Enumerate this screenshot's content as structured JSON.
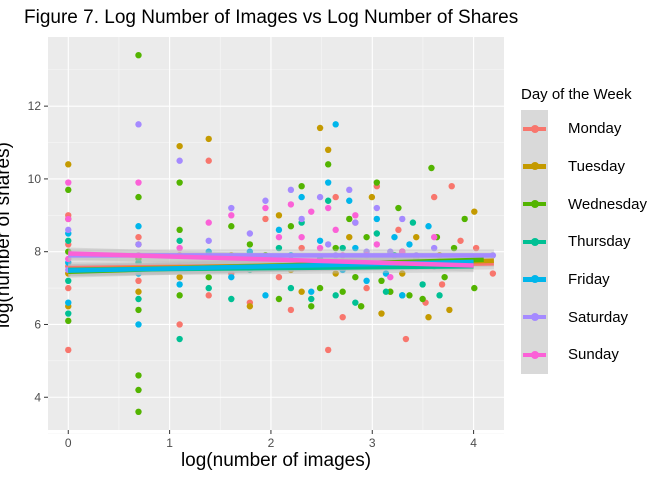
{
  "title": "Figure 7. Log Number of Images vs Log Number of Shares",
  "chart_data": {
    "type": "scatter",
    "xlabel": "log(number of images)",
    "ylabel": "log(number of shares)",
    "xlim": [
      -0.2,
      4.3
    ],
    "ylim": [
      3.1,
      13.9
    ],
    "x_ticks": [
      0,
      1,
      2,
      3,
      4
    ],
    "y_ticks": [
      4,
      6,
      8,
      10,
      12
    ],
    "grid": true,
    "legend_title": "Day of the Week",
    "legend_position": "right",
    "series": [
      {
        "name": "Monday",
        "color": "#F8766D",
        "trend": {
          "x": [
            0,
            4.2
          ],
          "y": [
            7.55,
            7.68
          ]
        },
        "points": [
          [
            0,
            5.3
          ],
          [
            0,
            7.0
          ],
          [
            0,
            7.6
          ],
          [
            0,
            8.2
          ],
          [
            0,
            9.0
          ],
          [
            0.693,
            7.2
          ],
          [
            0.693,
            8.4
          ],
          [
            1.099,
            6.0
          ],
          [
            1.099,
            7.9
          ],
          [
            1.386,
            10.5
          ],
          [
            1.386,
            6.8
          ],
          [
            1.609,
            7.4
          ],
          [
            1.792,
            6.6
          ],
          [
            1.946,
            8.9
          ],
          [
            2.079,
            7.3
          ],
          [
            2.197,
            6.4
          ],
          [
            2.303,
            8.1
          ],
          [
            2.398,
            7.6
          ],
          [
            2.565,
            5.3
          ],
          [
            2.639,
            9.5
          ],
          [
            2.708,
            6.2
          ],
          [
            2.833,
            8.8
          ],
          [
            2.944,
            7.0
          ],
          [
            3.045,
            9.8
          ],
          [
            3.178,
            6.9
          ],
          [
            3.258,
            8.6
          ],
          [
            3.332,
            5.6
          ],
          [
            3.434,
            7.7
          ],
          [
            3.526,
            6.6
          ],
          [
            3.611,
            9.5
          ],
          [
            3.689,
            7.1
          ],
          [
            3.784,
            9.8
          ],
          [
            3.871,
            8.3
          ],
          [
            4.025,
            8.1
          ],
          [
            4.19,
            7.4
          ]
        ]
      },
      {
        "name": "Tuesday",
        "color": "#C49A00",
        "trend": {
          "x": [
            0,
            4.2
          ],
          "y": [
            7.5,
            7.75
          ]
        },
        "points": [
          [
            0,
            6.5
          ],
          [
            0,
            7.4
          ],
          [
            0,
            8.9
          ],
          [
            0,
            10.4
          ],
          [
            0.693,
            6.9
          ],
          [
            0.693,
            8.2
          ],
          [
            1.099,
            10.9
          ],
          [
            1.099,
            7.3
          ],
          [
            1.386,
            11.1
          ],
          [
            1.609,
            7.9
          ],
          [
            1.792,
            6.5
          ],
          [
            2.079,
            9.0
          ],
          [
            2.197,
            7.5
          ],
          [
            2.303,
            6.9
          ],
          [
            2.485,
            11.4
          ],
          [
            2.565,
            10.8
          ],
          [
            2.639,
            7.4
          ],
          [
            2.773,
            8.4
          ],
          [
            2.89,
            6.5
          ],
          [
            2.996,
            9.5
          ],
          [
            3.091,
            6.3
          ],
          [
            3.219,
            7.9
          ],
          [
            3.296,
            7.4
          ],
          [
            3.434,
            8.4
          ],
          [
            3.555,
            6.2
          ],
          [
            3.664,
            7.9
          ],
          [
            3.761,
            6.4
          ],
          [
            4.007,
            9.1
          ]
        ]
      },
      {
        "name": "Wednesday",
        "color": "#53B400",
        "trend": {
          "x": [
            0,
            4.1
          ],
          "y": [
            7.45,
            7.78
          ]
        },
        "points": [
          [
            0,
            6.1
          ],
          [
            0,
            8.0
          ],
          [
            0,
            9.7
          ],
          [
            0.693,
            13.4
          ],
          [
            0.693,
            3.6
          ],
          [
            0.693,
            4.2
          ],
          [
            0.693,
            4.6
          ],
          [
            0.693,
            6.4
          ],
          [
            0.693,
            7.8
          ],
          [
            0.693,
            9.5
          ],
          [
            1.099,
            9.9
          ],
          [
            1.099,
            8.6
          ],
          [
            1.099,
            6.8
          ],
          [
            1.386,
            7.3
          ],
          [
            1.609,
            8.7
          ],
          [
            1.792,
            8.2
          ],
          [
            1.946,
            7.9
          ],
          [
            2.079,
            6.7
          ],
          [
            2.197,
            8.7
          ],
          [
            2.303,
            9.8
          ],
          [
            2.398,
            6.5
          ],
          [
            2.485,
            7.0
          ],
          [
            2.565,
            10.4
          ],
          [
            2.639,
            8.1
          ],
          [
            2.708,
            6.9
          ],
          [
            2.773,
            8.9
          ],
          [
            2.833,
            7.3
          ],
          [
            2.89,
            6.5
          ],
          [
            2.944,
            8.4
          ],
          [
            3.045,
            9.9
          ],
          [
            3.091,
            7.2
          ],
          [
            3.178,
            6.9
          ],
          [
            3.258,
            9.2
          ],
          [
            3.296,
            8.0
          ],
          [
            3.367,
            6.8
          ],
          [
            3.434,
            7.8
          ],
          [
            3.497,
            6.7
          ],
          [
            3.584,
            10.3
          ],
          [
            3.638,
            8.4
          ],
          [
            3.714,
            7.3
          ],
          [
            3.807,
            8.1
          ],
          [
            3.912,
            8.9
          ],
          [
            4.007,
            7.0
          ]
        ]
      },
      {
        "name": "Thursday",
        "color": "#00C094",
        "trend": {
          "x": [
            0,
            4.0
          ],
          "y": [
            7.5,
            7.6
          ]
        },
        "points": [
          [
            0,
            6.3
          ],
          [
            0,
            7.2
          ],
          [
            0,
            8.3
          ],
          [
            0.693,
            6.7
          ],
          [
            0.693,
            7.7
          ],
          [
            1.099,
            5.6
          ],
          [
            1.099,
            8.3
          ],
          [
            1.386,
            7.0
          ],
          [
            1.609,
            6.7
          ],
          [
            1.792,
            7.5
          ],
          [
            2.079,
            8.1
          ],
          [
            2.197,
            7.0
          ],
          [
            2.303,
            8.8
          ],
          [
            2.398,
            6.7
          ],
          [
            2.485,
            7.8
          ],
          [
            2.565,
            9.4
          ],
          [
            2.639,
            6.8
          ],
          [
            2.708,
            8.1
          ],
          [
            2.833,
            6.6
          ],
          [
            2.944,
            7.6
          ],
          [
            3.045,
            8.5
          ],
          [
            3.135,
            6.9
          ],
          [
            3.219,
            7.9
          ],
          [
            3.296,
            6.8
          ],
          [
            3.401,
            8.8
          ],
          [
            3.497,
            7.1
          ],
          [
            3.611,
            7.6
          ],
          [
            3.664,
            6.8
          ]
        ]
      },
      {
        "name": "Friday",
        "color": "#00B6EB",
        "trend": {
          "x": [
            0,
            4.0
          ],
          "y": [
            7.48,
            7.72
          ]
        },
        "points": [
          [
            0,
            6.6
          ],
          [
            0,
            7.7
          ],
          [
            0,
            8.5
          ],
          [
            0.693,
            6.0
          ],
          [
            0.693,
            7.4
          ],
          [
            0.693,
            8.7
          ],
          [
            1.099,
            7.1
          ],
          [
            1.386,
            8.0
          ],
          [
            1.609,
            7.3
          ],
          [
            1.792,
            8.0
          ],
          [
            1.946,
            6.8
          ],
          [
            2.079,
            8.6
          ],
          [
            2.197,
            7.9
          ],
          [
            2.303,
            9.5
          ],
          [
            2.398,
            6.9
          ],
          [
            2.485,
            8.3
          ],
          [
            2.565,
            9.9
          ],
          [
            2.639,
            11.5
          ],
          [
            2.708,
            7.5
          ],
          [
            2.773,
            9.4
          ],
          [
            2.833,
            8.1
          ],
          [
            2.944,
            7.2
          ],
          [
            3.045,
            8.9
          ],
          [
            3.135,
            7.4
          ],
          [
            3.219,
            8.4
          ],
          [
            3.296,
            6.8
          ],
          [
            3.367,
            8.2
          ],
          [
            3.466,
            7.7
          ],
          [
            3.555,
            8.7
          ]
        ]
      },
      {
        "name": "Saturday",
        "color": "#A58AFF",
        "trend": {
          "x": [
            0,
            4.2
          ],
          "y": [
            7.9,
            7.9
          ]
        },
        "points": [
          [
            0,
            7.5
          ],
          [
            0,
            8.6
          ],
          [
            0.693,
            8.2
          ],
          [
            0.693,
            11.5
          ],
          [
            1.099,
            10.5
          ],
          [
            1.099,
            7.6
          ],
          [
            1.386,
            8.3
          ],
          [
            1.609,
            9.2
          ],
          [
            1.792,
            8.5
          ],
          [
            1.946,
            9.4
          ],
          [
            2.079,
            7.7
          ],
          [
            2.197,
            9.7
          ],
          [
            2.303,
            8.9
          ],
          [
            2.398,
            7.6
          ],
          [
            2.485,
            9.5
          ],
          [
            2.565,
            8.2
          ],
          [
            2.639,
            7.9
          ],
          [
            2.773,
            9.7
          ],
          [
            2.833,
            8.8
          ],
          [
            2.944,
            8.0
          ],
          [
            3.045,
            9.2
          ],
          [
            3.178,
            8.0
          ],
          [
            3.296,
            8.9
          ],
          [
            3.434,
            7.9
          ],
          [
            3.611,
            8.1
          ],
          [
            4.19,
            7.9
          ]
        ]
      },
      {
        "name": "Sunday",
        "color": "#FB61D7",
        "trend": {
          "x": [
            0,
            4.0
          ],
          "y": [
            7.95,
            7.62
          ]
        },
        "points": [
          [
            0,
            7.8
          ],
          [
            0,
            8.9
          ],
          [
            0,
            9.9
          ],
          [
            0.693,
            7.9
          ],
          [
            0.693,
            9.9
          ],
          [
            1.099,
            8.1
          ],
          [
            1.386,
            8.8
          ],
          [
            1.609,
            9.0
          ],
          [
            1.792,
            7.8
          ],
          [
            1.946,
            9.2
          ],
          [
            2.079,
            8.4
          ],
          [
            2.197,
            9.3
          ],
          [
            2.303,
            8.4
          ],
          [
            2.398,
            9.1
          ],
          [
            2.485,
            8.1
          ],
          [
            2.565,
            9.2
          ],
          [
            2.639,
            8.6
          ],
          [
            2.708,
            7.9
          ],
          [
            2.833,
            9.0
          ],
          [
            2.944,
            7.9
          ],
          [
            3.045,
            8.2
          ],
          [
            3.178,
            7.3
          ],
          [
            3.296,
            8.0
          ],
          [
            3.434,
            7.6
          ],
          [
            3.611,
            8.4
          ]
        ]
      }
    ]
  }
}
